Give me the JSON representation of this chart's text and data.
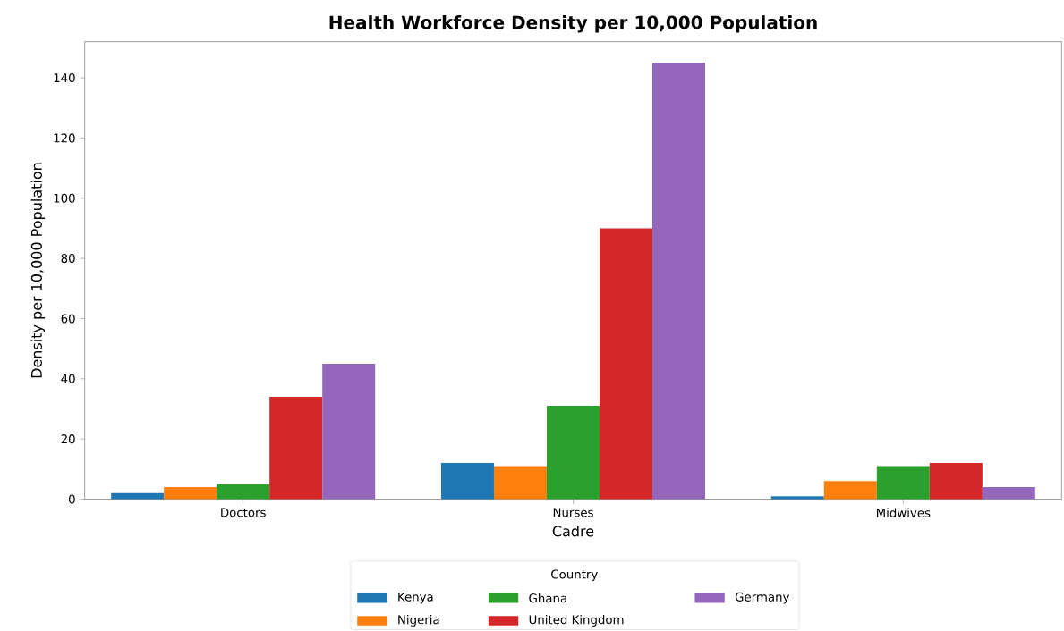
{
  "chart_data": {
    "type": "bar",
    "title": "Health Workforce Density per 10,000 Population",
    "xlabel": "Cadre",
    "ylabel": "Density per 10,000 Population",
    "legend_title": "Country",
    "categories": [
      "Doctors",
      "Nurses",
      "Midwives"
    ],
    "series": [
      {
        "name": "Kenya",
        "color": "#1f77b4",
        "values": [
          2,
          12,
          1
        ]
      },
      {
        "name": "Nigeria",
        "color": "#ff7f0e",
        "values": [
          4,
          11,
          6
        ]
      },
      {
        "name": "Ghana",
        "color": "#2ca02c",
        "values": [
          5,
          31,
          11
        ]
      },
      {
        "name": "United Kingdom",
        "color": "#d62728",
        "values": [
          34,
          90,
          12
        ]
      },
      {
        "name": "Germany",
        "color": "#9467bd",
        "values": [
          45,
          145,
          4
        ]
      }
    ],
    "ylim": [
      0,
      152
    ],
    "yticks": [
      0,
      20,
      40,
      60,
      80,
      100,
      120,
      140
    ],
    "grid": false,
    "legend": "bottom"
  }
}
